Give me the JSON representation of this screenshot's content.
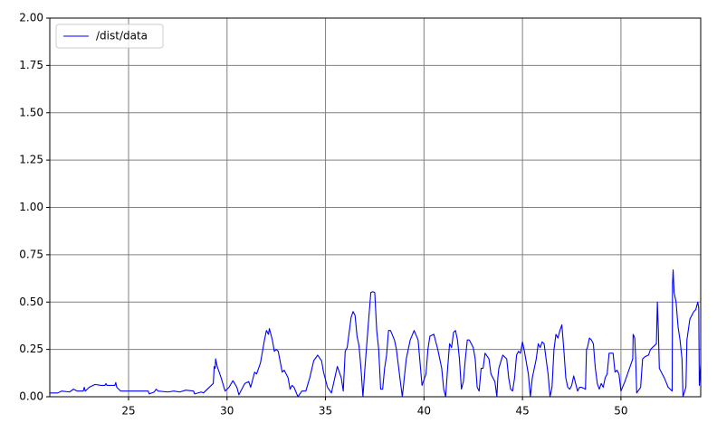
{
  "chart_data": {
    "type": "line",
    "x": [
      21.0,
      21.4,
      21.6,
      22.0,
      22.2,
      22.4,
      22.7,
      22.75,
      22.8,
      23.0,
      23.3,
      23.6,
      23.8,
      23.85,
      23.9,
      24.3,
      24.35,
      24.4,
      24.6,
      26.0,
      26.05,
      26.3,
      26.4,
      26.5,
      27.0,
      27.3,
      27.6,
      27.9,
      28.3,
      28.35,
      28.7,
      28.8,
      29.3,
      29.35,
      29.4,
      29.42,
      29.5,
      29.7,
      29.9,
      30.1,
      30.3,
      30.5,
      30.6,
      30.8,
      30.9,
      31.1,
      31.2,
      31.4,
      31.5,
      31.7,
      31.9,
      32.0,
      32.1,
      32.15,
      32.3,
      32.4,
      32.5,
      32.6,
      32.8,
      32.9,
      33.1,
      33.2,
      33.3,
      33.4,
      33.6,
      33.8,
      34.0,
      34.2,
      34.4,
      34.6,
      34.8,
      34.9,
      35.1,
      35.3,
      35.6,
      35.8,
      35.9,
      36.0,
      36.1,
      36.3,
      36.4,
      36.5,
      36.6,
      36.7,
      36.8,
      36.9,
      37.0,
      37.2,
      37.3,
      37.4,
      37.5,
      37.6,
      37.7,
      37.8,
      37.9,
      38.0,
      38.1,
      38.2,
      38.3,
      38.5,
      38.6,
      38.8,
      38.9,
      39.1,
      39.3,
      39.5,
      39.7,
      39.9,
      40.1,
      40.2,
      40.3,
      40.5,
      40.7,
      40.8,
      40.9,
      41.0,
      41.1,
      41.2,
      41.3,
      41.4,
      41.5,
      41.6,
      41.7,
      41.8,
      41.9,
      42.0,
      42.1,
      42.2,
      42.3,
      42.5,
      42.6,
      42.7,
      42.8,
      42.9,
      43.0,
      43.1,
      43.3,
      43.4,
      43.6,
      43.7,
      43.75,
      43.8,
      44.0,
      44.2,
      44.3,
      44.4,
      44.5,
      44.6,
      44.7,
      44.8,
      44.9,
      45.0,
      45.1,
      45.3,
      45.4,
      45.5,
      45.6,
      45.7,
      45.8,
      45.9,
      46.0,
      46.1,
      46.2,
      46.3,
      46.4,
      46.5,
      46.6,
      46.7,
      46.8,
      46.9,
      47.0,
      47.1,
      47.2,
      47.3,
      47.4,
      47.5,
      47.6,
      47.7,
      47.8,
      47.9,
      48.0,
      48.2,
      48.25,
      48.3,
      48.4,
      48.5,
      48.6,
      48.7,
      48.8,
      48.9,
      49.0,
      49.1,
      49.2,
      49.3,
      49.4,
      49.6,
      49.7,
      49.8,
      49.9,
      50.0,
      50.2,
      50.4,
      50.5,
      50.6,
      50.62,
      50.7,
      50.75,
      50.8,
      51.0,
      51.1,
      51.2,
      51.4,
      51.5,
      51.7,
      51.8,
      51.85,
      51.9,
      51.95,
      52.2,
      52.4,
      52.6,
      52.62,
      52.65,
      52.7,
      52.8,
      52.9,
      53.0,
      53.1,
      53.15,
      53.3,
      53.35,
      53.5,
      53.7,
      53.8,
      53.9,
      53.95,
      53.98,
      54.05
    ],
    "series": [
      {
        "name": "/dist/data",
        "color": "#0000ff",
        "values": [
          0.02,
          0.02,
          0.03,
          0.025,
          0.04,
          0.03,
          0.03,
          0.05,
          0.03,
          0.05,
          0.065,
          0.06,
          0.06,
          0.07,
          0.06,
          0.06,
          0.075,
          0.05,
          0.03,
          0.03,
          0.015,
          0.025,
          0.04,
          0.03,
          0.025,
          0.03,
          0.025,
          0.035,
          0.03,
          0.015,
          0.025,
          0.02,
          0.07,
          0.16,
          0.15,
          0.2,
          0.16,
          0.1,
          0.03,
          0.05,
          0.085,
          0.05,
          0.01,
          0.05,
          0.07,
          0.08,
          0.05,
          0.13,
          0.12,
          0.18,
          0.3,
          0.35,
          0.33,
          0.36,
          0.3,
          0.24,
          0.25,
          0.24,
          0.13,
          0.14,
          0.1,
          0.04,
          0.06,
          0.05,
          0.0,
          0.03,
          0.03,
          0.1,
          0.19,
          0.22,
          0.19,
          0.13,
          0.05,
          0.02,
          0.16,
          0.1,
          0.03,
          0.24,
          0.26,
          0.42,
          0.45,
          0.43,
          0.32,
          0.27,
          0.15,
          0.0,
          0.15,
          0.42,
          0.55,
          0.555,
          0.55,
          0.35,
          0.25,
          0.04,
          0.04,
          0.15,
          0.22,
          0.35,
          0.35,
          0.3,
          0.25,
          0.08,
          0.0,
          0.2,
          0.3,
          0.35,
          0.3,
          0.06,
          0.12,
          0.25,
          0.32,
          0.33,
          0.25,
          0.2,
          0.15,
          0.04,
          0.0,
          0.15,
          0.28,
          0.26,
          0.34,
          0.35,
          0.3,
          0.2,
          0.04,
          0.08,
          0.2,
          0.3,
          0.3,
          0.26,
          0.2,
          0.05,
          0.03,
          0.15,
          0.15,
          0.23,
          0.2,
          0.12,
          0.08,
          0.0,
          0.1,
          0.15,
          0.22,
          0.2,
          0.1,
          0.04,
          0.03,
          0.1,
          0.22,
          0.24,
          0.23,
          0.29,
          0.24,
          0.12,
          0.0,
          0.1,
          0.15,
          0.2,
          0.28,
          0.26,
          0.29,
          0.28,
          0.2,
          0.12,
          0.0,
          0.05,
          0.25,
          0.33,
          0.31,
          0.35,
          0.38,
          0.25,
          0.1,
          0.05,
          0.04,
          0.06,
          0.11,
          0.07,
          0.03,
          0.05,
          0.05,
          0.04,
          0.25,
          0.26,
          0.31,
          0.3,
          0.28,
          0.15,
          0.07,
          0.04,
          0.07,
          0.05,
          0.1,
          0.12,
          0.23,
          0.23,
          0.13,
          0.14,
          0.12,
          0.03,
          0.08,
          0.14,
          0.17,
          0.2,
          0.33,
          0.31,
          0.2,
          0.02,
          0.05,
          0.2,
          0.21,
          0.22,
          0.25,
          0.27,
          0.28,
          0.5,
          0.35,
          0.15,
          0.1,
          0.05,
          0.03,
          0.6,
          0.67,
          0.55,
          0.5,
          0.37,
          0.3,
          0.2,
          0.0,
          0.05,
          0.3,
          0.41,
          0.45,
          0.46,
          0.5,
          0.47,
          0.06,
          0.17
        ]
      }
    ],
    "xlim": [
      21.0,
      54.05
    ],
    "ylim": [
      0,
      2
    ],
    "xticks": [
      25,
      30,
      35,
      40,
      45,
      50
    ],
    "yticks": [
      {
        "value": 0,
        "label": "0.00"
      },
      {
        "value": 0.25,
        "label": "0.25"
      },
      {
        "value": 0.5,
        "label": "0.50"
      },
      {
        "value": 0.75,
        "label": "0.75"
      },
      {
        "value": 1.0,
        "label": "1.00"
      },
      {
        "value": 1.25,
        "label": "1.25"
      },
      {
        "value": 1.5,
        "label": "1.50"
      },
      {
        "value": 1.75,
        "label": "1.75"
      },
      {
        "value": 2.0,
        "label": "2.00"
      }
    ],
    "grid": true,
    "legend": "upper-left"
  }
}
